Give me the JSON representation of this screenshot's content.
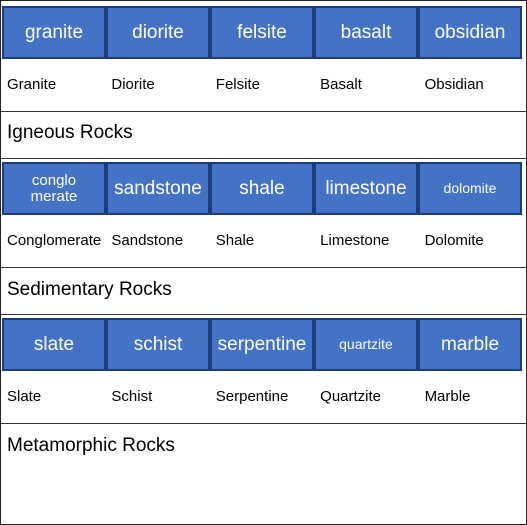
{
  "groups": [
    {
      "tiles": [
        "granite",
        "diorite",
        "felsite",
        "basalt",
        "obsidian"
      ],
      "labels": [
        "Granite",
        "Diorite",
        "Felsite",
        "Basalt",
        "Obsidian"
      ],
      "category": "Igneous Rocks"
    },
    {
      "tiles": [
        "conglo\nmerate",
        "sandstone",
        "shale",
        "limestone",
        "dolomite"
      ],
      "labels": [
        "Conglomerate",
        "Sandstone",
        "Shale",
        "Limestone",
        "Dolomite"
      ],
      "category": "Sedimentary Rocks"
    },
    {
      "tiles": [
        "slate",
        "schist",
        "serpentine",
        "quartzite",
        "marble"
      ],
      "labels": [
        "Slate",
        "Schist",
        "Serpentine",
        "Quartzite",
        "Marble"
      ],
      "category": "Metamorphic Rocks"
    }
  ],
  "colors": {
    "tile_fill": "#4472c4",
    "tile_border": "#1f3c7a",
    "tile_text": "#ffffff"
  }
}
